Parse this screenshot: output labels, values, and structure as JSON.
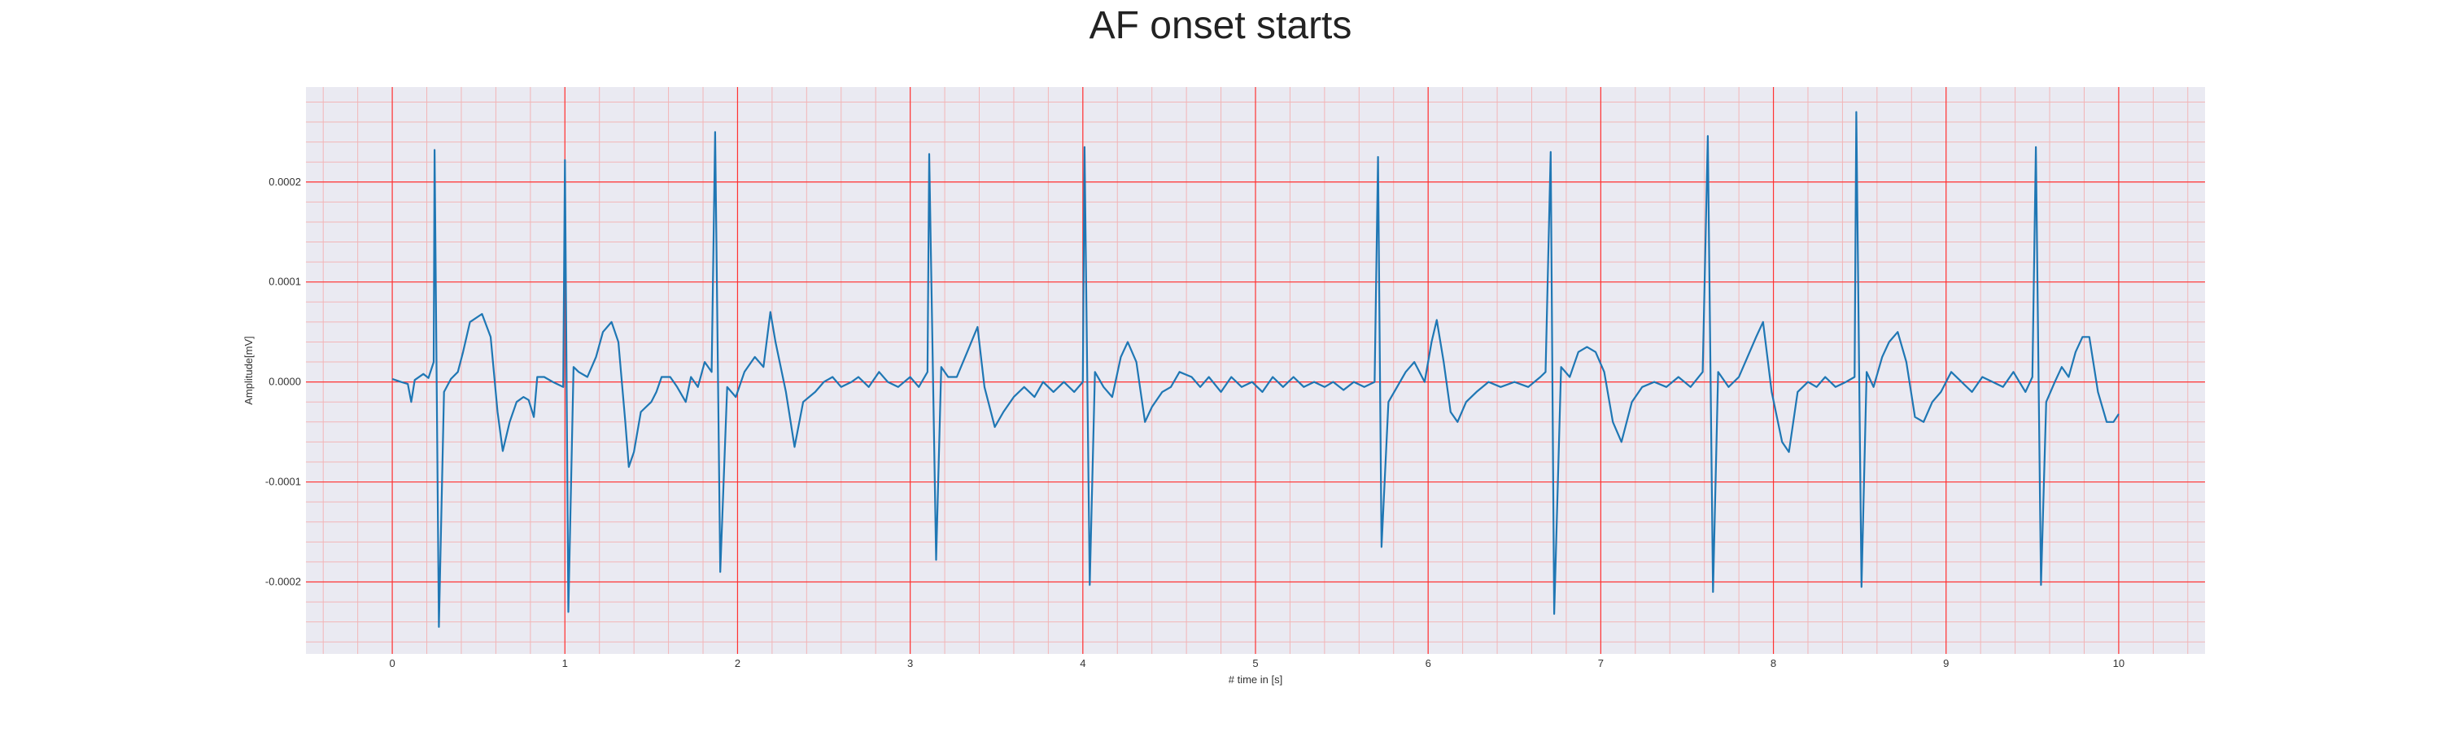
{
  "chart_data": {
    "type": "line",
    "title": "AF onset starts",
    "xlabel": "# time in [s]",
    "ylabel": "Amplitude[mV]",
    "xlim": [
      -0.5,
      10.5
    ],
    "ylim": [
      -0.000272,
      0.000295
    ],
    "x_ticks": [
      0,
      1,
      2,
      3,
      4,
      5,
      6,
      7,
      8,
      9,
      10
    ],
    "x_tick_labels": [
      "0",
      "1",
      "2",
      "3",
      "4",
      "5",
      "6",
      "7",
      "8",
      "9",
      "10"
    ],
    "y_ticks": [
      -0.0002,
      -0.0001,
      0.0,
      0.0001,
      0.0002
    ],
    "y_tick_labels": [
      "-0.0002",
      "-0.0001",
      "0.0000",
      "0.0001",
      "0.0002"
    ],
    "grid": true,
    "colors": {
      "plot_bg": "#eaeaf2",
      "major_grid": "#ff3333",
      "minor_grid": "#f4a9a9",
      "line": "#1f77b4"
    },
    "series": [
      {
        "values": [
          [
            0.0,
            3e-06
          ],
          [
            0.05,
            0.0
          ],
          [
            0.09,
            -2e-06
          ],
          [
            0.11,
            -2e-05
          ],
          [
            0.13,
            2e-06
          ],
          [
            0.18,
            8e-06
          ],
          [
            0.21,
            4e-06
          ],
          [
            0.24,
            2e-05
          ],
          [
            0.245,
            0.000232
          ],
          [
            0.27,
            -0.000245
          ],
          [
            0.3,
            -1e-05
          ],
          [
            0.34,
            3e-06
          ],
          [
            0.38,
            1e-05
          ],
          [
            0.41,
            3e-05
          ],
          [
            0.45,
            6e-05
          ],
          [
            0.52,
            6.8e-05
          ],
          [
            0.57,
            4.5e-05
          ],
          [
            0.61,
            -3e-05
          ],
          [
            0.64,
            -6.9e-05
          ],
          [
            0.68,
            -4e-05
          ],
          [
            0.72,
            -2e-05
          ],
          [
            0.76,
            -1.5e-05
          ],
          [
            0.79,
            -1.8e-05
          ],
          [
            0.82,
            -3.5e-05
          ],
          [
            0.84,
            5e-06
          ],
          [
            0.88,
            5e-06
          ],
          [
            0.93,
            0.0
          ],
          [
            0.99,
            -5e-06
          ],
          [
            1.0,
            0.000222
          ],
          [
            1.02,
            -0.00023
          ],
          [
            1.05,
            1.5e-05
          ],
          [
            1.08,
            1e-05
          ],
          [
            1.13,
            5e-06
          ],
          [
            1.18,
            2.5e-05
          ],
          [
            1.22,
            5e-05
          ],
          [
            1.27,
            6e-05
          ],
          [
            1.31,
            4e-05
          ],
          [
            1.35,
            -4e-05
          ],
          [
            1.37,
            -8.5e-05
          ],
          [
            1.4,
            -7e-05
          ],
          [
            1.44,
            -3e-05
          ],
          [
            1.5,
            -2e-05
          ],
          [
            1.53,
            -1e-05
          ],
          [
            1.56,
            5e-06
          ],
          [
            1.61,
            5e-06
          ],
          [
            1.65,
            -5e-06
          ],
          [
            1.7,
            -2e-05
          ],
          [
            1.73,
            5e-06
          ],
          [
            1.77,
            -5e-06
          ],
          [
            1.81,
            2e-05
          ],
          [
            1.85,
            1e-05
          ],
          [
            1.87,
            0.00025
          ],
          [
            1.9,
            -0.00019
          ],
          [
            1.94,
            -5e-06
          ],
          [
            1.99,
            -1.5e-05
          ],
          [
            2.04,
            1e-05
          ],
          [
            2.1,
            2.5e-05
          ],
          [
            2.15,
            1.5e-05
          ],
          [
            2.19,
            7e-05
          ],
          [
            2.22,
            4e-05
          ],
          [
            2.28,
            -1e-05
          ],
          [
            2.33,
            -6.5e-05
          ],
          [
            2.38,
            -2e-05
          ],
          [
            2.45,
            -1e-05
          ],
          [
            2.5,
            0.0
          ],
          [
            2.55,
            5e-06
          ],
          [
            2.6,
            -5e-06
          ],
          [
            2.66,
            0.0
          ],
          [
            2.7,
            5e-06
          ],
          [
            2.76,
            -5e-06
          ],
          [
            2.82,
            1e-05
          ],
          [
            2.87,
            0.0
          ],
          [
            2.93,
            -5e-06
          ],
          [
            3.0,
            5e-06
          ],
          [
            3.05,
            -5e-06
          ],
          [
            3.1,
            1e-05
          ],
          [
            3.11,
            0.000228
          ],
          [
            3.15,
            -0.000178
          ],
          [
            3.18,
            1.5e-05
          ],
          [
            3.22,
            5e-06
          ],
          [
            3.27,
            5e-06
          ],
          [
            3.33,
            3e-05
          ],
          [
            3.39,
            5.5e-05
          ],
          [
            3.43,
            -5e-06
          ],
          [
            3.49,
            -4.5e-05
          ],
          [
            3.54,
            -3e-05
          ],
          [
            3.6,
            -1.5e-05
          ],
          [
            3.66,
            -5e-06
          ],
          [
            3.72,
            -1.5e-05
          ],
          [
            3.77,
            0.0
          ],
          [
            3.83,
            -1e-05
          ],
          [
            3.89,
            0.0
          ],
          [
            3.95,
            -1e-05
          ],
          [
            4.0,
            0.0
          ],
          [
            4.01,
            0.000235
          ],
          [
            4.04,
            -0.000203
          ],
          [
            4.07,
            1e-05
          ],
          [
            4.12,
            -5e-06
          ],
          [
            4.17,
            -1.5e-05
          ],
          [
            4.22,
            2.5e-05
          ],
          [
            4.26,
            4e-05
          ],
          [
            4.31,
            2e-05
          ],
          [
            4.36,
            -4e-05
          ],
          [
            4.4,
            -2.5e-05
          ],
          [
            4.46,
            -1e-05
          ],
          [
            4.51,
            -5e-06
          ],
          [
            4.56,
            1e-05
          ],
          [
            4.63,
            5e-06
          ],
          [
            4.68,
            -5e-06
          ],
          [
            4.73,
            5e-06
          ],
          [
            4.8,
            -1e-05
          ],
          [
            4.86,
            5e-06
          ],
          [
            4.92,
            -5e-06
          ],
          [
            4.98,
            0.0
          ],
          [
            5.04,
            -1e-05
          ],
          [
            5.1,
            5e-06
          ],
          [
            5.16,
            -5e-06
          ],
          [
            5.22,
            5e-06
          ],
          [
            5.28,
            -5e-06
          ],
          [
            5.34,
            0.0
          ],
          [
            5.4,
            -5e-06
          ],
          [
            5.45,
            0.0
          ],
          [
            5.51,
            -8e-06
          ],
          [
            5.57,
            0.0
          ],
          [
            5.63,
            -5e-06
          ],
          [
            5.69,
            0.0
          ],
          [
            5.71,
            0.000225
          ],
          [
            5.73,
            -0.000165
          ],
          [
            5.77,
            -2e-05
          ],
          [
            5.82,
            -5e-06
          ],
          [
            5.87,
            1e-05
          ],
          [
            5.92,
            2e-05
          ],
          [
            5.98,
            0.0
          ],
          [
            6.02,
            4e-05
          ],
          [
            6.05,
            6.2e-05
          ],
          [
            6.09,
            2e-05
          ],
          [
            6.13,
            -3e-05
          ],
          [
            6.17,
            -4e-05
          ],
          [
            6.22,
            -2e-05
          ],
          [
            6.28,
            -1e-05
          ],
          [
            6.35,
            0.0
          ],
          [
            6.42,
            -5e-06
          ],
          [
            6.5,
            0.0
          ],
          [
            6.58,
            -5e-06
          ],
          [
            6.65,
            5e-06
          ],
          [
            6.68,
            1e-05
          ],
          [
            6.71,
            0.00023
          ],
          [
            6.73,
            -0.000232
          ],
          [
            6.77,
            1.5e-05
          ],
          [
            6.82,
            5e-06
          ],
          [
            6.87,
            3e-05
          ],
          [
            6.92,
            3.5e-05
          ],
          [
            6.97,
            3e-05
          ],
          [
            7.02,
            1e-05
          ],
          [
            7.07,
            -4e-05
          ],
          [
            7.12,
            -6e-05
          ],
          [
            7.18,
            -2e-05
          ],
          [
            7.24,
            -5e-06
          ],
          [
            7.31,
            0.0
          ],
          [
            7.38,
            -5e-06
          ],
          [
            7.45,
            5e-06
          ],
          [
            7.52,
            -5e-06
          ],
          [
            7.59,
            1e-05
          ],
          [
            7.62,
            0.000246
          ],
          [
            7.65,
            -0.00021
          ],
          [
            7.68,
            1e-05
          ],
          [
            7.74,
            -5e-06
          ],
          [
            7.8,
            5e-06
          ],
          [
            7.85,
            2.5e-05
          ],
          [
            7.9,
            4.5e-05
          ],
          [
            7.94,
            6e-05
          ],
          [
            7.99,
            -1e-05
          ],
          [
            8.05,
            -6e-05
          ],
          [
            8.09,
            -7e-05
          ],
          [
            8.14,
            -1e-05
          ],
          [
            8.2,
            0.0
          ],
          [
            8.25,
            -5e-06
          ],
          [
            8.3,
            5e-06
          ],
          [
            8.36,
            -5e-06
          ],
          [
            8.42,
            0.0
          ],
          [
            8.47,
            5e-06
          ],
          [
            8.48,
            0.00027
          ],
          [
            8.51,
            -0.000205
          ],
          [
            8.54,
            1e-05
          ],
          [
            8.58,
            -5e-06
          ],
          [
            8.63,
            2.5e-05
          ],
          [
            8.67,
            4e-05
          ],
          [
            8.72,
            5e-05
          ],
          [
            8.77,
            2e-05
          ],
          [
            8.82,
            -3.5e-05
          ],
          [
            8.87,
            -4e-05
          ],
          [
            8.92,
            -2e-05
          ],
          [
            8.97,
            -1e-05
          ],
          [
            9.03,
            1e-05
          ],
          [
            9.09,
            0.0
          ],
          [
            9.15,
            -1e-05
          ],
          [
            9.21,
            5e-06
          ],
          [
            9.27,
            0.0
          ],
          [
            9.33,
            -5e-06
          ],
          [
            9.39,
            1e-05
          ],
          [
            9.46,
            -1e-05
          ],
          [
            9.5,
            5e-06
          ],
          [
            9.52,
            0.000235
          ],
          [
            9.55,
            -0.000203
          ],
          [
            9.58,
            -2e-05
          ],
          [
            9.63,
            0.0
          ],
          [
            9.67,
            1.5e-05
          ],
          [
            9.71,
            5e-06
          ],
          [
            9.75,
            3e-05
          ],
          [
            9.79,
            4.5e-05
          ],
          [
            9.83,
            4.5e-05
          ],
          [
            9.88,
            -1e-05
          ],
          [
            9.93,
            -4e-05
          ],
          [
            9.97,
            -4e-05
          ],
          [
            10.0,
            -3.2e-05
          ]
        ]
      }
    ]
  }
}
